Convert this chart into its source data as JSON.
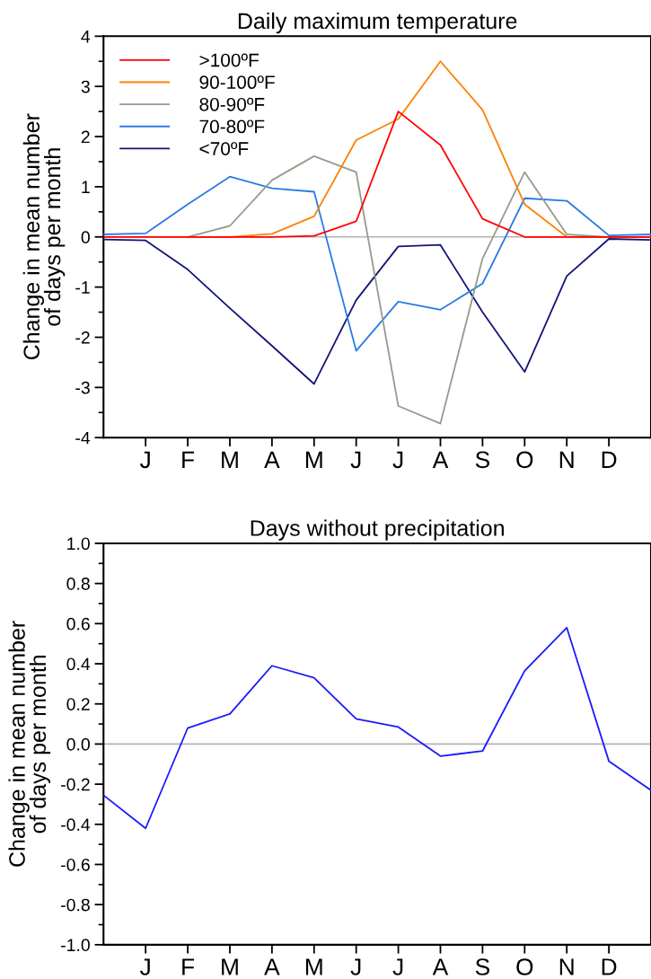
{
  "chart_data": [
    {
      "type": "line",
      "title": "Daily maximum temperature",
      "ylabel": "Change in mean number\nof days per month",
      "categories": [
        null,
        "J",
        "F",
        "M",
        "A",
        "M",
        "J",
        "J",
        "A",
        "S",
        "O",
        "N",
        "D",
        null
      ],
      "series": [
        {
          "name": ">100ºF",
          "color": "#ff0000",
          "values": [
            0,
            0,
            0,
            0,
            0,
            0.02,
            0.31,
            2.5,
            1.83,
            0.36,
            0,
            0,
            0,
            0
          ]
        },
        {
          "name": "90-100ºF",
          "color": "#ff8000",
          "values": [
            null,
            null,
            0,
            0,
            0.06,
            0.41,
            1.93,
            2.35,
            3.5,
            2.53,
            0.65,
            0,
            0,
            0
          ]
        },
        {
          "name": "80-90ºF",
          "color": "#939d8a",
          "values": [
            null,
            null,
            0,
            0.22,
            1.13,
            1.61,
            1.29,
            -3.37,
            -3.72,
            -0.43,
            1.29,
            0.05,
            0,
            0
          ]
        },
        {
          "name": "70-80ºF",
          "color": "#2a7ae4",
          "values": [
            0.05,
            0.07,
            0.65,
            1.2,
            0.97,
            0.9,
            -2.27,
            -1.29,
            -1.45,
            -0.93,
            0.77,
            0.72,
            0.03,
            0.05
          ]
        },
        {
          "name": "<70ºF",
          "color": "#141478",
          "values": [
            -0.05,
            -0.07,
            -0.65,
            -1.42,
            -2.17,
            -2.93,
            -1.26,
            -0.19,
            -0.16,
            -1.5,
            -2.69,
            -0.78,
            -0.04,
            -0.06
          ]
        }
      ],
      "ylim": [
        -4,
        4
      ],
      "yticks": [
        -4,
        -3,
        -2,
        -1,
        0,
        1,
        2,
        3,
        4
      ],
      "ref_lines": [
        {
          "axis": "y",
          "value": 0,
          "color": "#b4b4b4"
        }
      ],
      "legend": "top left",
      "grid": false,
      "marker": "none",
      "line_style": "solid"
    },
    {
      "type": "line",
      "title": "Days without precipitation",
      "ylabel": "Change in mean number\nof days per month",
      "categories": [
        null,
        "J",
        "F",
        "M",
        "A",
        "M",
        "J",
        "J",
        "A",
        "S",
        "O",
        "N",
        "D",
        null
      ],
      "series": [
        {
          "color": "#1a1aff",
          "values": [
            -0.255,
            -0.42,
            0.08,
            0.15,
            0.39,
            0.33,
            0.125,
            0.085,
            -0.06,
            -0.035,
            0.365,
            0.58,
            -0.085,
            -0.23
          ]
        }
      ],
      "ylim": [
        -1,
        1
      ],
      "yticks": [
        {
          "value": -1,
          "label": "-1.0"
        },
        {
          "value": -0.8,
          "label": "-0.8"
        },
        {
          "value": -0.6,
          "label": "-0.6"
        },
        {
          "value": -0.4,
          "label": "-0.4"
        },
        {
          "value": -0.2,
          "label": "-0.2"
        },
        {
          "value": 0,
          "label": "0.0"
        },
        {
          "value": 0.2,
          "label": "0.2"
        },
        {
          "value": 0.4,
          "label": "0.4"
        },
        {
          "value": 0.6,
          "label": "0.6"
        },
        {
          "value": 0.8,
          "label": "0.8"
        },
        {
          "value": 1,
          "label": "1.0"
        }
      ],
      "ref_lines": [
        {
          "axis": "y",
          "value": 0,
          "color": "#b4b4b4"
        }
      ],
      "grid": false,
      "marker": "none",
      "line_style": "solid"
    }
  ]
}
